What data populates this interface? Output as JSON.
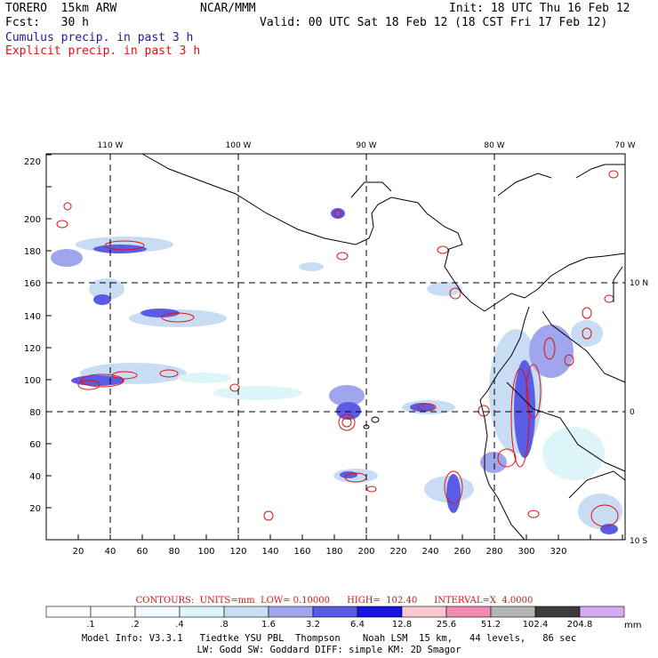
{
  "header": {
    "model": "TORERO  15km ARW",
    "center": "NCAR/MMM",
    "init": "Init: 18 UTC Thu 16 Feb 12",
    "fcst": "Fcst:   30 h",
    "valid": "Valid: 00 UTC Sat 18 Feb 12 (18 CST Fri 17 Feb 12)",
    "legend_cumulus": "Cumulus precip. in past 3 h",
    "legend_explicit": "Explicit precip. in past 3 h"
  },
  "colors": {
    "cumulus": "#1a1aa8",
    "explicit": "#e01010",
    "coast": "#000000"
  },
  "map": {
    "lon_labels": [
      "110 W",
      "100 W",
      "90 W",
      "80 W",
      "70 W"
    ],
    "lat_labels": [
      "10 N",
      "0",
      "10 S"
    ],
    "x_ticks": [
      "20",
      "40",
      "60",
      "80",
      "100",
      "120",
      "140",
      "160",
      "180",
      "200",
      "220",
      "240",
      "260",
      "280",
      "300",
      "320"
    ],
    "y_ticks": [
      "20",
      "40",
      "60",
      "80",
      "100",
      "120",
      "140",
      "160",
      "180",
      "200",
      "220"
    ]
  },
  "contour_info": {
    "label": "CONTOURS:  UNITS=mm  LOW= 0.10000      HIGH=  102.40      INTERVAL=X  4.0000"
  },
  "colorbar": {
    "unit": "mm",
    "values": [
      ".1",
      ".2",
      ".4",
      ".8",
      "1.6",
      "3.2",
      "6.4",
      "12.8",
      "25.6",
      "51.2",
      "102.4",
      "204.8"
    ],
    "colors": [
      "#ffffff",
      "#ffffff",
      "#f2f8ff",
      "#ddf5f8",
      "#c8ddf3",
      "#a0a6ee",
      "#5a5ce6",
      "#1a14e2",
      "#f8c8d0",
      "#f08cb4",
      "#b4b4b4",
      "#3c3c3c",
      "#d6aaf0"
    ]
  },
  "footer": {
    "line1": "Model Info: V3.3.1   Tiedtke YSU PBL  Thompson    Noah LSM  15 km,   44 levels,   86 sec",
    "line2": "LW: Godd SW: Goddard DIFF: simple KM: 2D Smagor"
  }
}
